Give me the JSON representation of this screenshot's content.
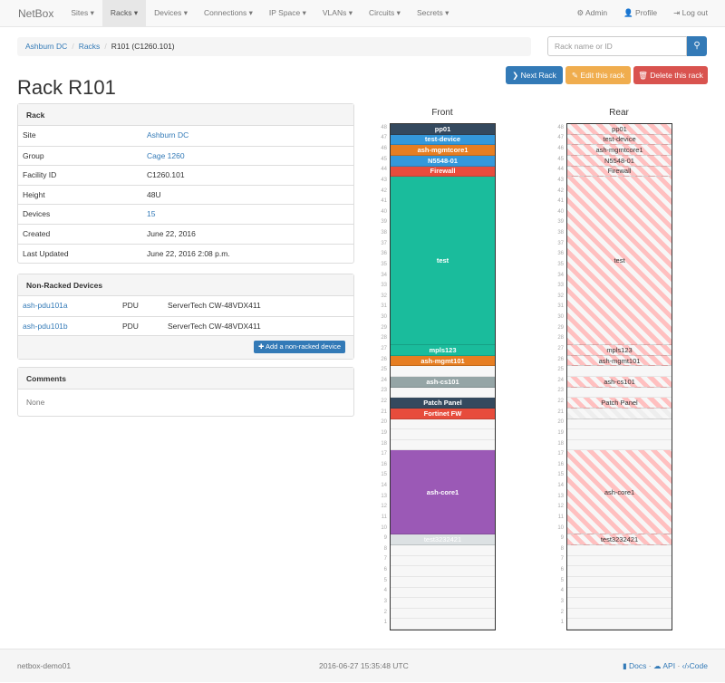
{
  "navbar": {
    "brand": "NetBox",
    "items": [
      "Sites ▾",
      "Racks ▾",
      "Devices ▾",
      "Connections ▾",
      "IP Space ▾",
      "VLANs ▾",
      "Circuits ▾",
      "Secrets ▾"
    ],
    "active": 1,
    "right": [
      {
        "icon": "gear-icon",
        "label": "⚙ Admin"
      },
      {
        "icon": "user-icon",
        "label": "👤 Profile"
      },
      {
        "icon": "logout-icon",
        "label": "⇥ Log out"
      }
    ]
  },
  "breadcrumb": [
    "Ashburn DC",
    "Racks",
    "R101 (C1260.101)"
  ],
  "search": {
    "placeholder": "Rack name or ID",
    "icon": "search-icon"
  },
  "buttons": {
    "next": "❯ Next Rack",
    "edit": "✎ Edit this rack",
    "delete": "🗑 Delete this rack"
  },
  "colors": {
    "next": "#337ab7",
    "edit": "#f0ad4e",
    "delete": "#d9534f"
  },
  "title": "Rack R101",
  "rack_panel": {
    "heading": "Rack",
    "rows": [
      {
        "k": "Site",
        "v": "Ashburn DC",
        "link": true
      },
      {
        "k": "Group",
        "v": "Cage 1260",
        "link": true
      },
      {
        "k": "Facility ID",
        "v": "C1260.101",
        "link": false
      },
      {
        "k": "Height",
        "v": "48U",
        "link": false
      },
      {
        "k": "Devices",
        "v": "15",
        "link": true
      },
      {
        "k": "Created",
        "v": "June 22, 2016",
        "link": false
      },
      {
        "k": "Last Updated",
        "v": "June 22, 2016 2:08 p.m.",
        "link": false
      }
    ]
  },
  "nonracked": {
    "heading": "Non-Racked Devices",
    "rows": [
      {
        "name": "ash-pdu101a",
        "role": "PDU",
        "type": "ServerTech CW-48VDX411"
      },
      {
        "name": "ash-pdu101b",
        "role": "PDU",
        "type": "ServerTech CW-48VDX411"
      }
    ],
    "add_button": "✚ Add a non-racked device"
  },
  "comments": {
    "heading": "Comments",
    "text": "None"
  },
  "elevation": {
    "height": 48,
    "front_label": "Front",
    "rear_label": "Rear",
    "devices": [
      {
        "name": "pp01",
        "top": 48,
        "u": 1,
        "color": "#34495e"
      },
      {
        "name": "test-device",
        "top": 47,
        "u": 1,
        "color": "#3498db"
      },
      {
        "name": "ash-mgmtcore1",
        "top": 46,
        "u": 1,
        "color": "#e67e22"
      },
      {
        "name": "N5548-01",
        "top": 45,
        "u": 1,
        "color": "#3498db"
      },
      {
        "name": "Firewall",
        "top": 44,
        "u": 1,
        "color": "#e74c3c"
      },
      {
        "name": "test",
        "top": 43,
        "u": 16,
        "color": "#1abc9c"
      },
      {
        "name": "mpls123",
        "top": 27,
        "u": 1,
        "color": "#1abc9c"
      },
      {
        "name": "ash-mgmt101",
        "top": 26,
        "u": 1,
        "color": "#e67e22"
      },
      {
        "name": "ash-cs101",
        "top": 24,
        "u": 1,
        "color": "#95a5a6"
      },
      {
        "name": "Patch Panel",
        "top": 22,
        "u": 1,
        "color": "#34495e"
      },
      {
        "name": "Fortinet FW",
        "top": 21,
        "u": 1,
        "color": "#e74c3c",
        "front_only": true
      },
      {
        "name": "ash-core1",
        "top": 17,
        "u": 8,
        "color": "#9b59b6"
      },
      {
        "name": "test3232421",
        "top": 9,
        "u": 1,
        "color": "#dce1e3"
      }
    ]
  },
  "footer": {
    "host": "netbox-demo01",
    "time": "2016-06-27 15:35:48 UTC",
    "links": [
      "Docs",
      "API",
      "Code"
    ]
  }
}
